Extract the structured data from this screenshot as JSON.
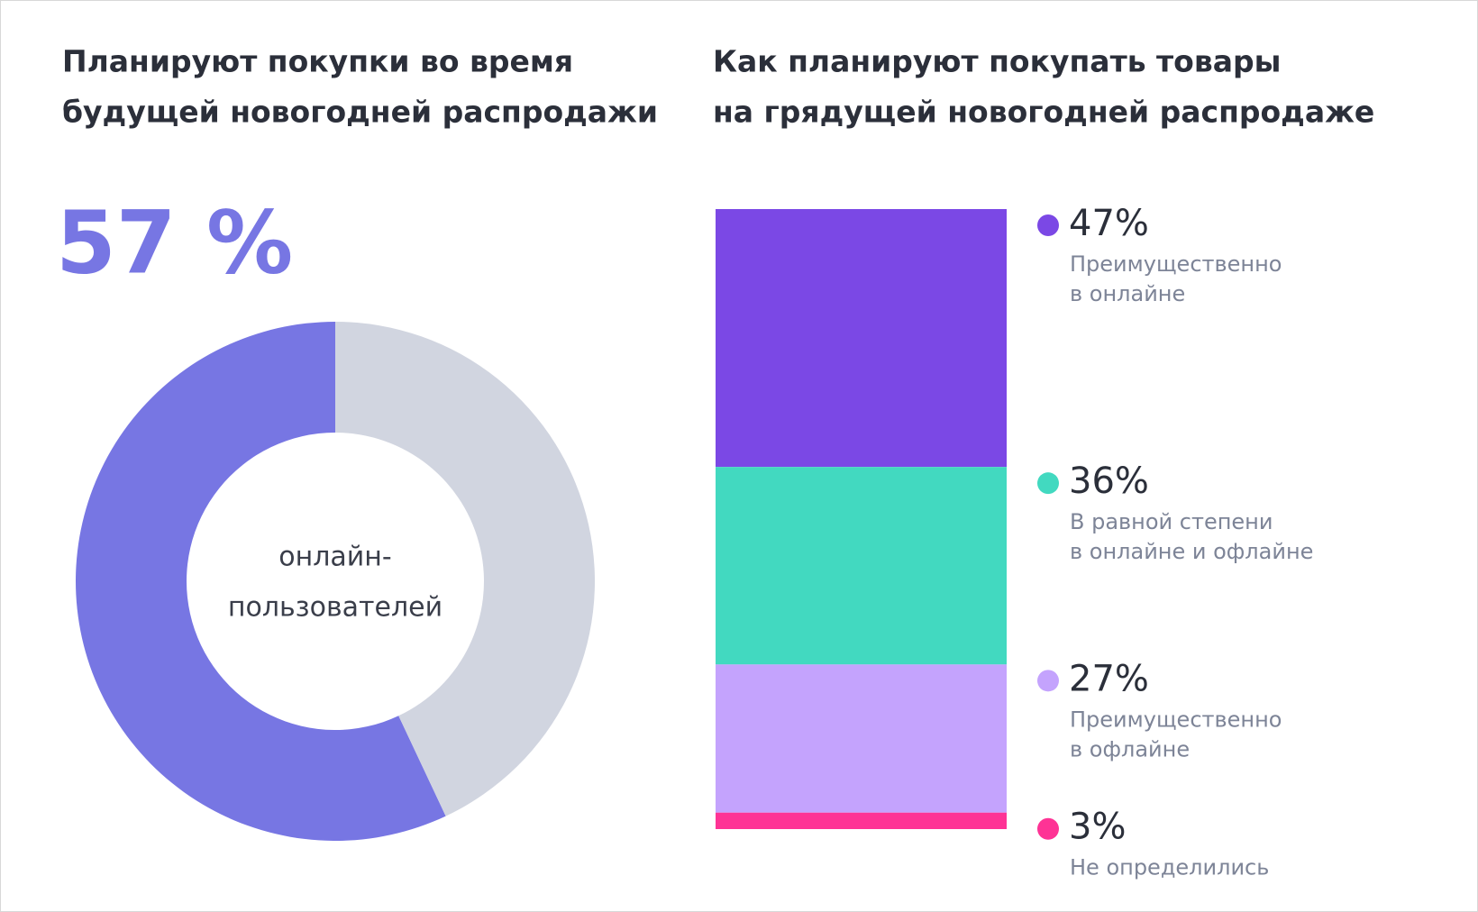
{
  "chart_data": [
    {
      "type": "donut",
      "title": [
        "Планируют покупки во время",
        "будущей новогодней распродажи"
      ],
      "values": [
        57,
        43
      ],
      "value_labels": [
        "57 %",
        null
      ],
      "colors": [
        "#7776e3",
        "#d1d5e0"
      ],
      "center_label": [
        "онлайн-",
        "пользователей"
      ]
    },
    {
      "type": "stacked_bar",
      "title": [
        "Как планируют покупать товары",
        "на грядущей новогодней распродаже"
      ],
      "categories": [
        [
          "Преимущественно",
          "в онлайне"
        ],
        [
          "В равной степени",
          "в онлайне и офлайне"
        ],
        [
          "Преимущественно",
          "в офлайне"
        ],
        [
          "Не определились"
        ]
      ],
      "values": [
        47,
        36,
        27,
        3
      ],
      "value_labels": [
        "47%",
        "36%",
        "27%",
        "3%"
      ],
      "colors": [
        "#7b48e5",
        "#42d9c0",
        "#c4a3fd",
        "#fe3395"
      ]
    }
  ]
}
